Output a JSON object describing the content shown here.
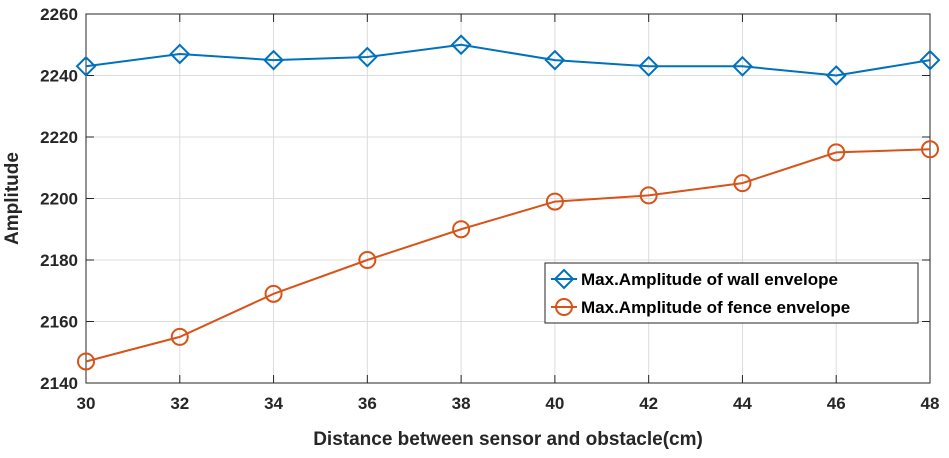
{
  "chart_data": {
    "type": "line",
    "xlabel": "Distance between sensor and obstacle(cm)",
    "ylabel": "Amplitude",
    "x": [
      30,
      32,
      34,
      36,
      38,
      40,
      42,
      44,
      46,
      48
    ],
    "xlim": [
      30,
      48
    ],
    "ylim": [
      2140,
      2260
    ],
    "xticks": [
      "30",
      "32",
      "34",
      "36",
      "38",
      "40",
      "42",
      "44",
      "46",
      "48"
    ],
    "yticks": [
      "2140",
      "2160",
      "2180",
      "2200",
      "2220",
      "2240",
      "2260"
    ],
    "grid": true,
    "legend_position": "center-right",
    "series": [
      {
        "name": "Max.Amplitude of wall envelope",
        "color": "#0072BD",
        "marker": "diamond",
        "values": [
          2243,
          2247,
          2245,
          2246,
          2250,
          2245,
          2243,
          2243,
          2240,
          2245
        ]
      },
      {
        "name": "Max.Amplitude of fence envelope",
        "color": "#D95319",
        "marker": "circle",
        "values": [
          2147,
          2155,
          2169,
          2180,
          2190,
          2199,
          2201,
          2205,
          2215,
          2216
        ]
      }
    ]
  }
}
